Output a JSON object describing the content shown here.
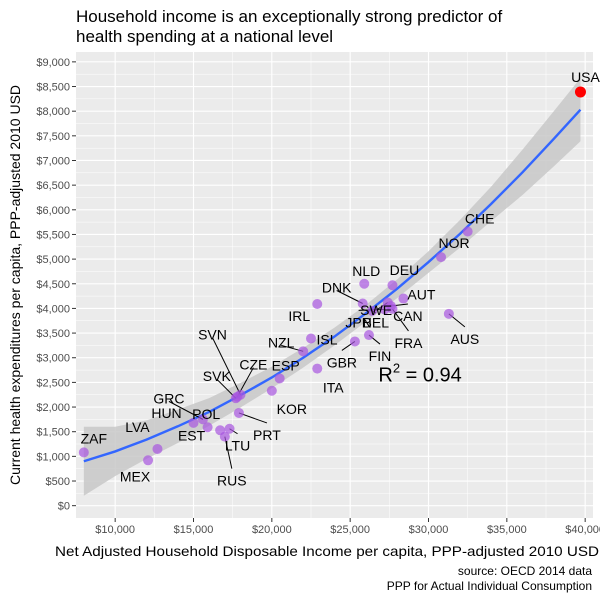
{
  "chart_data": {
    "type": "scatter",
    "title_lines": [
      "Household income is an exceptionally strong predictor of",
      "health spending at a national level"
    ],
    "xlabel": "Net Adjusted Household Disposable Income per capita, PPP-adjusted 2010 USD",
    "ylabel": "Current health expenditures per capita, PPP-adjusted 2010 USD",
    "xlim": [
      7500,
      40500
    ],
    "ylim": [
      -250,
      9200
    ],
    "x_ticks": [
      10000,
      15000,
      20000,
      25000,
      30000,
      35000,
      40000
    ],
    "x_tick_labels": [
      "$10,000",
      "$15,000",
      "$20,000",
      "$25,000",
      "$30,000",
      "$35,000",
      "$40,000"
    ],
    "y_ticks": [
      0,
      500,
      1000,
      1500,
      2000,
      2500,
      3000,
      3500,
      4000,
      4500,
      5000,
      5500,
      6000,
      6500,
      7000,
      7500,
      8000,
      8500,
      9000
    ],
    "y_tick_labels": [
      "$0",
      "$500",
      "$1,000",
      "$1,500",
      "$2,000",
      "$2,500",
      "$3,000",
      "$3,500",
      "$4,000",
      "$4,500",
      "$5,000",
      "$5,500",
      "$6,000",
      "$6,500",
      "$7,000",
      "$7,500",
      "$8,000",
      "$8,500",
      "$9,000"
    ],
    "grid": true,
    "background_color": "#ebebeb",
    "grid_color": "#ffffff",
    "point_color": "#a855e0",
    "highlight_color": "#ff0000",
    "fit_color": "#3366ff",
    "ribbon_color": "#c8c8c8",
    "points": [
      {
        "label": "ZAF",
        "x": 8000,
        "y": 1080
      },
      {
        "label": "MEX",
        "x": 12100,
        "y": 920
      },
      {
        "label": "LVA",
        "x": 12700,
        "y": 1150
      },
      {
        "label": "GRC",
        "x": 15600,
        "y": 1750
      },
      {
        "label": "HUN",
        "x": 15000,
        "y": 1680
      },
      {
        "label": "EST",
        "x": 15900,
        "y": 1590
      },
      {
        "label": "POL",
        "x": 16700,
        "y": 1530
      },
      {
        "label": "LTU",
        "x": 17300,
        "y": 1560
      },
      {
        "label": "RUS",
        "x": 17000,
        "y": 1400
      },
      {
        "label": "PRT",
        "x": 17900,
        "y": 1880
      },
      {
        "label": "SVK",
        "x": 17700,
        "y": 2180
      },
      {
        "label": "SVN",
        "x": 18000,
        "y": 2250
      },
      {
        "label": "CZE",
        "x": 17800,
        "y": 2210
      },
      {
        "label": "KOR",
        "x": 20000,
        "y": 2330
      },
      {
        "label": "ESP",
        "x": 20500,
        "y": 2580
      },
      {
        "label": "NZL",
        "x": 22000,
        "y": 3130
      },
      {
        "label": "ISL",
        "x": 22500,
        "y": 3390
      },
      {
        "label": "ITA",
        "x": 22900,
        "y": 2780
      },
      {
        "label": "GBR",
        "x": 25300,
        "y": 3330
      },
      {
        "label": "IRL",
        "x": 22900,
        "y": 4090
      },
      {
        "label": "FIN",
        "x": 26200,
        "y": 3460
      },
      {
        "label": "DNK",
        "x": 25800,
        "y": 4100
      },
      {
        "label": "NLD",
        "x": 25900,
        "y": 4500
      },
      {
        "label": "SWE",
        "x": 26400,
        "y": 3950
      },
      {
        "label": "JPN",
        "x": 27200,
        "y": 3980
      },
      {
        "label": "BEL",
        "x": 27400,
        "y": 4120
      },
      {
        "label": "CAN",
        "x": 27600,
        "y": 4050
      },
      {
        "label": "FRA",
        "x": 27700,
        "y": 3990
      },
      {
        "label": "DEU",
        "x": 27700,
        "y": 4470
      },
      {
        "label": "AUT",
        "x": 28400,
        "y": 4200
      },
      {
        "label": "AUS",
        "x": 31300,
        "y": 3890
      },
      {
        "label": "NOR",
        "x": 30800,
        "y": 5040
      },
      {
        "label": "CHE",
        "x": 32500,
        "y": 5560
      },
      {
        "label": "USA",
        "x": 39700,
        "y": 8390,
        "highlight": true
      }
    ],
    "fit": {
      "x": [
        8000,
        10000,
        12000,
        14000,
        16000,
        18000,
        20000,
        22000,
        24000,
        26000,
        28000,
        30000,
        32000,
        34000,
        36000,
        38000,
        39700
      ],
      "y": [
        900,
        1100,
        1340,
        1610,
        1900,
        2240,
        2600,
        3000,
        3430,
        3900,
        4400,
        4940,
        5510,
        6120,
        6760,
        7440,
        8030
      ],
      "ci_low": [
        200,
        600,
        950,
        1270,
        1620,
        1990,
        2380,
        2800,
        3250,
        3730,
        4210,
        4720,
        5230,
        5770,
        6300,
        6880,
        7390
      ],
      "ci_high": [
        1600,
        1600,
        1730,
        1950,
        2180,
        2490,
        2820,
        3200,
        3610,
        4070,
        4590,
        5160,
        5790,
        6470,
        7220,
        8000,
        8670
      ]
    },
    "annotation": {
      "text": "R",
      "superscript": "2",
      "suffix": " = 0.94",
      "x": 26800,
      "y": 2520
    }
  },
  "caption": {
    "source": "source: OECD 2014 data",
    "note": "PPP for Actual Individual Consumption"
  }
}
